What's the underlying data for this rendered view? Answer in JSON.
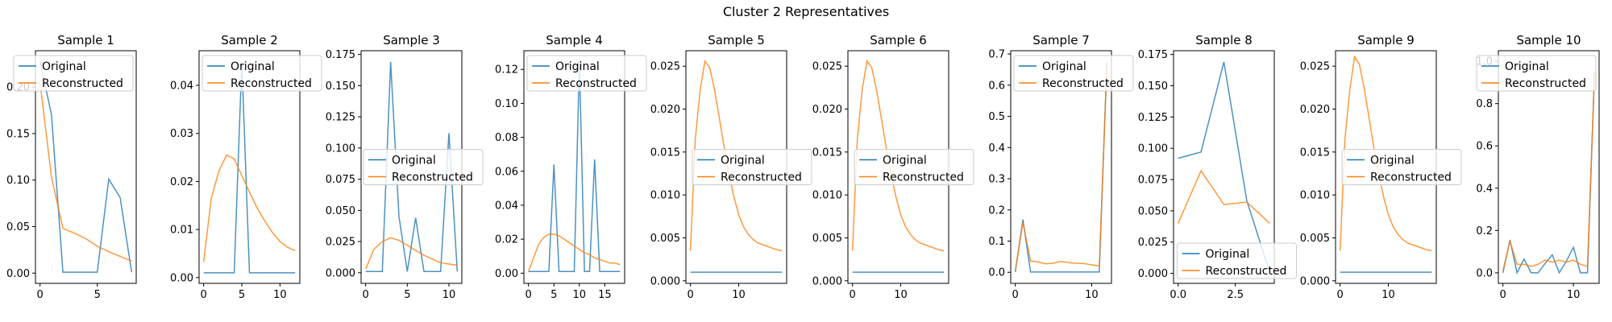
{
  "figure": {
    "suptitle": "Cluster 2 Representatives",
    "colors": {
      "original": "#1f77b4",
      "reconstructed": "#ff7f0e"
    }
  },
  "chart_data": [
    {
      "type": "line",
      "title": "Sample 1",
      "xlim": [
        -0.4,
        8.4
      ],
      "ylim": [
        -0.011,
        0.239
      ],
      "xticks": [
        0,
        5
      ],
      "yticks": [
        0.0,
        0.05,
        0.1,
        0.15,
        0.2
      ],
      "ytick_labels": [
        "0.00",
        "0.05",
        "0.10",
        "0.15",
        "0.20"
      ],
      "legend_position": "upper-right",
      "series": [
        {
          "name": "Original",
          "x": [
            0,
            1,
            2,
            3,
            4,
            5,
            6,
            7,
            8
          ],
          "values": [
            0.228,
            0.17,
            0.001,
            0.001,
            0.001,
            0.001,
            0.101,
            0.081,
            0.001
          ]
        },
        {
          "name": "Reconstructed",
          "x": [
            0,
            1,
            2,
            3,
            4,
            5,
            6,
            7,
            8
          ],
          "values": [
            0.205,
            0.103,
            0.048,
            0.043,
            0.037,
            0.029,
            0.023,
            0.018,
            0.013
          ]
        }
      ]
    },
    {
      "type": "line",
      "title": "Sample 2",
      "xlim": [
        -0.6,
        12.6
      ],
      "ylim": [
        -0.0012,
        0.0472
      ],
      "xticks": [
        0,
        5,
        10
      ],
      "yticks": [
        0.0,
        0.01,
        0.02,
        0.03,
        0.04
      ],
      "ytick_labels": [
        "0.00",
        "0.01",
        "0.02",
        "0.03",
        "0.04"
      ],
      "legend_position": "upper-left",
      "series": [
        {
          "name": "Original",
          "x": [
            0,
            1,
            2,
            3,
            4,
            5,
            6,
            7,
            8,
            9,
            10,
            11,
            12
          ],
          "values": [
            0.001,
            0.001,
            0.001,
            0.001,
            0.001,
            0.045,
            0.001,
            0.001,
            0.001,
            0.001,
            0.001,
            0.001,
            0.001
          ]
        },
        {
          "name": "Reconstructed",
          "x": [
            0,
            1,
            2,
            3,
            4,
            5,
            6,
            7,
            8,
            9,
            10,
            11,
            12
          ],
          "values": [
            0.0033,
            0.0165,
            0.0222,
            0.0255,
            0.0247,
            0.0212,
            0.0178,
            0.0145,
            0.0118,
            0.0094,
            0.0075,
            0.0063,
            0.0056
          ]
        }
      ]
    },
    {
      "type": "line",
      "title": "Sample 3",
      "xlim": [
        -0.55,
        11.55
      ],
      "ylim": [
        -0.0085,
        0.178
      ],
      "xticks": [
        0,
        5,
        10
      ],
      "yticks": [
        0.0,
        0.025,
        0.05,
        0.075,
        0.1,
        0.125,
        0.15,
        0.175
      ],
      "ytick_labels": [
        "0.000",
        "0.025",
        "0.050",
        "0.075",
        "0.100",
        "0.125",
        "0.150",
        "0.175"
      ],
      "legend_position": "center-right",
      "series": [
        {
          "name": "Original",
          "x": [
            0,
            1,
            2,
            3,
            4,
            5,
            6,
            7,
            8,
            9,
            10,
            11
          ],
          "values": [
            0.001,
            0.001,
            0.001,
            0.169,
            0.045,
            0.001,
            0.044,
            0.001,
            0.001,
            0.001,
            0.112,
            0.001
          ]
        },
        {
          "name": "Reconstructed",
          "x": [
            0,
            1,
            2,
            3,
            4,
            5,
            6,
            7,
            8,
            9,
            10,
            11
          ],
          "values": [
            0.003,
            0.019,
            0.025,
            0.028,
            0.026,
            0.022,
            0.018,
            0.014,
            0.011,
            0.008,
            0.007,
            0.006
          ]
        }
      ]
    },
    {
      "type": "line",
      "title": "Sample 4",
      "xlim": [
        -0.9,
        18.9
      ],
      "ylim": [
        -0.006,
        0.131
      ],
      "xticks": [
        0,
        5,
        10,
        15
      ],
      "yticks": [
        0.0,
        0.02,
        0.04,
        0.06,
        0.08,
        0.1,
        0.12
      ],
      "ytick_labels": [
        "0.00",
        "0.02",
        "0.04",
        "0.06",
        "0.08",
        "0.10",
        "0.12"
      ],
      "legend_position": "upper-left",
      "series": [
        {
          "name": "Original",
          "x": [
            0,
            1,
            2,
            3,
            4,
            5,
            6,
            7,
            8,
            9,
            10,
            11,
            12,
            13,
            14,
            15,
            16,
            17,
            18
          ],
          "values": [
            0.001,
            0.001,
            0.001,
            0.001,
            0.001,
            0.064,
            0.001,
            0.001,
            0.001,
            0.001,
            0.125,
            0.001,
            0.001,
            0.067,
            0.001,
            0.001,
            0.001,
            0.001,
            0.001
          ]
        },
        {
          "name": "Reconstructed",
          "x": [
            0,
            1,
            2,
            3,
            4,
            5,
            6,
            7,
            8,
            9,
            10,
            11,
            12,
            13,
            14,
            15,
            16,
            17,
            18
          ],
          "values": [
            0.001,
            0.009,
            0.017,
            0.021,
            0.023,
            0.023,
            0.022,
            0.02,
            0.018,
            0.016,
            0.014,
            0.012,
            0.011,
            0.009,
            0.008,
            0.007,
            0.006,
            0.006,
            0.005
          ]
        }
      ]
    },
    {
      "type": "line",
      "title": "Sample 5",
      "xlim": [
        -0.95,
        19.95
      ],
      "ylim": [
        -0.0003,
        0.0268
      ],
      "xticks": [
        0,
        10
      ],
      "yticks": [
        0.0,
        0.005,
        0.01,
        0.015,
        0.02,
        0.025
      ],
      "ytick_labels": [
        "0.000",
        "0.005",
        "0.010",
        "0.015",
        "0.020",
        "0.025"
      ],
      "legend_position": "center-left",
      "series": [
        {
          "name": "Original",
          "x": [
            0,
            1,
            2,
            3,
            4,
            5,
            6,
            7,
            8,
            9,
            10,
            11,
            12,
            13,
            14,
            15,
            16,
            17,
            18,
            19
          ],
          "values": [
            0.001,
            0.001,
            0.001,
            0.001,
            0.001,
            0.001,
            0.001,
            0.001,
            0.001,
            0.001,
            0.001,
            0.001,
            0.001,
            0.001,
            0.001,
            0.001,
            0.001,
            0.001,
            0.001,
            0.001
          ]
        },
        {
          "name": "Reconstructed",
          "x": [
            0,
            1,
            2,
            3,
            4,
            5,
            6,
            7,
            8,
            9,
            10,
            11,
            12,
            13,
            14,
            15,
            16,
            17,
            18,
            19
          ],
          "values": [
            0.0035,
            0.0165,
            0.0222,
            0.0256,
            0.0248,
            0.0222,
            0.0189,
            0.0155,
            0.0124,
            0.0098,
            0.0077,
            0.0063,
            0.0054,
            0.0048,
            0.0044,
            0.0042,
            0.004,
            0.0038,
            0.0036,
            0.0035
          ]
        }
      ]
    },
    {
      "type": "line",
      "title": "Sample 6",
      "xlim": [
        -0.95,
        19.95
      ],
      "ylim": [
        -0.0003,
        0.0268
      ],
      "xticks": [
        0,
        10
      ],
      "yticks": [
        0.0,
        0.005,
        0.01,
        0.015,
        0.02,
        0.025
      ],
      "ytick_labels": [
        "0.000",
        "0.005",
        "0.010",
        "0.015",
        "0.020",
        "0.025"
      ],
      "legend_position": "center-left",
      "series": [
        {
          "name": "Original",
          "x": [
            0,
            1,
            2,
            3,
            4,
            5,
            6,
            7,
            8,
            9,
            10,
            11,
            12,
            13,
            14,
            15,
            16,
            17,
            18,
            19
          ],
          "values": [
            0.001,
            0.001,
            0.001,
            0.001,
            0.001,
            0.001,
            0.001,
            0.001,
            0.001,
            0.001,
            0.001,
            0.001,
            0.001,
            0.001,
            0.001,
            0.001,
            0.001,
            0.001,
            0.001,
            0.001
          ]
        },
        {
          "name": "Reconstructed",
          "x": [
            0,
            1,
            2,
            3,
            4,
            5,
            6,
            7,
            8,
            9,
            10,
            11,
            12,
            13,
            14,
            15,
            16,
            17,
            18,
            19
          ],
          "values": [
            0.0035,
            0.0165,
            0.0222,
            0.0256,
            0.0248,
            0.0222,
            0.0189,
            0.0155,
            0.0124,
            0.0098,
            0.0077,
            0.0063,
            0.0054,
            0.0048,
            0.0044,
            0.0042,
            0.004,
            0.0038,
            0.0036,
            0.0035
          ]
        }
      ]
    },
    {
      "type": "line",
      "title": "Sample 7",
      "xlim": [
        -0.6,
        12.6
      ],
      "ylim": [
        -0.0355,
        0.7105
      ],
      "xticks": [
        0,
        10
      ],
      "yticks": [
        0.0,
        0.1,
        0.2,
        0.3,
        0.4,
        0.5,
        0.6,
        0.7
      ],
      "ytick_labels": [
        "0.0",
        "0.1",
        "0.2",
        "0.3",
        "0.4",
        "0.5",
        "0.6",
        "0.7"
      ],
      "legend_position": "upper-left",
      "series": [
        {
          "name": "Original",
          "x": [
            0,
            1,
            2,
            3,
            4,
            5,
            6,
            7,
            8,
            9,
            10,
            11,
            12
          ],
          "values": [
            0.001,
            0.169,
            0.001,
            0.001,
            0.001,
            0.001,
            0.001,
            0.001,
            0.001,
            0.001,
            0.001,
            0.001,
            0.675
          ]
        },
        {
          "name": "Reconstructed",
          "x": [
            0,
            1,
            2,
            3,
            4,
            5,
            6,
            7,
            8,
            9,
            10,
            11,
            12
          ],
          "values": [
            0.005,
            0.16,
            0.036,
            0.033,
            0.027,
            0.029,
            0.035,
            0.031,
            0.029,
            0.028,
            0.024,
            0.02,
            0.66
          ]
        }
      ]
    },
    {
      "type": "line",
      "title": "Sample 8",
      "xlim": [
        -0.2,
        4.2
      ],
      "ylim": [
        -0.008,
        0.178
      ],
      "xticks": [
        0,
        2.5
      ],
      "xtick_labels": [
        "0.0",
        "2.5"
      ],
      "yticks": [
        0.0,
        0.025,
        0.05,
        0.075,
        0.1,
        0.125,
        0.15,
        0.175
      ],
      "ytick_labels": [
        "0.000",
        "0.025",
        "0.050",
        "0.075",
        "0.100",
        "0.125",
        "0.150",
        "0.175"
      ],
      "legend_position": "lower-center",
      "series": [
        {
          "name": "Original",
          "x": [
            0,
            1,
            2,
            3,
            4
          ],
          "values": [
            0.092,
            0.097,
            0.169,
            0.058,
            0.001
          ]
        },
        {
          "name": "Reconstructed",
          "x": [
            0,
            1,
            2,
            3,
            4
          ],
          "values": [
            0.04,
            0.082,
            0.055,
            0.057,
            0.04
          ]
        }
      ]
    },
    {
      "type": "line",
      "title": "Sample 9",
      "xlim": [
        -0.95,
        19.95
      ],
      "ylim": [
        -0.0003,
        0.0268
      ],
      "xticks": [
        0,
        10
      ],
      "yticks": [
        0.0,
        0.005,
        0.01,
        0.015,
        0.02,
        0.025
      ],
      "ytick_labels": [
        "0.000",
        "0.005",
        "0.010",
        "0.015",
        "0.020",
        "0.025"
      ],
      "legend_position": "center-left",
      "series": [
        {
          "name": "Original",
          "x": [
            0,
            1,
            2,
            3,
            4,
            5,
            6,
            7,
            8,
            9,
            10,
            11,
            12,
            13,
            14,
            15,
            16,
            17,
            18,
            19
          ],
          "values": [
            0.001,
            0.001,
            0.001,
            0.001,
            0.001,
            0.001,
            0.001,
            0.001,
            0.001,
            0.001,
            0.001,
            0.001,
            0.001,
            0.001,
            0.001,
            0.001,
            0.001,
            0.001,
            0.001,
            0.001
          ]
        },
        {
          "name": "Reconstructed",
          "x": [
            0,
            1,
            2,
            3,
            4,
            5,
            6,
            7,
            8,
            9,
            10,
            11,
            12,
            13,
            14,
            15,
            16,
            17,
            18,
            19
          ],
          "values": [
            0.0035,
            0.0165,
            0.0222,
            0.0261,
            0.0252,
            0.0224,
            0.019,
            0.0155,
            0.0124,
            0.0098,
            0.0077,
            0.0063,
            0.0054,
            0.0048,
            0.0044,
            0.0042,
            0.004,
            0.0038,
            0.0036,
            0.0035
          ]
        }
      ]
    },
    {
      "type": "line",
      "title": "Sample 10",
      "xlim": [
        -0.65,
        13.65
      ],
      "ylim": [
        -0.05,
        1.05
      ],
      "xticks": [
        0,
        10
      ],
      "yticks": [
        0.0,
        0.2,
        0.4,
        0.6,
        0.8,
        1.0
      ],
      "ytick_labels": [
        "0.0",
        "0.2",
        "0.4",
        "0.6",
        "0.8",
        "1.0"
      ],
      "legend_position": "upper-right",
      "series": [
        {
          "name": "Original",
          "x": [
            0,
            1,
            2,
            3,
            4,
            5,
            6,
            7,
            8,
            9,
            10,
            11,
            12,
            13
          ],
          "values": [
            0.0,
            0.155,
            0.0,
            0.065,
            0.0,
            0.0,
            0.045,
            0.085,
            0.0,
            0.055,
            0.12,
            0.0,
            0.0,
            0.95
          ]
        },
        {
          "name": "Reconstructed",
          "x": [
            0,
            1,
            2,
            3,
            4,
            5,
            6,
            7,
            8,
            9,
            10,
            11,
            12,
            13
          ],
          "values": [
            0.01,
            0.15,
            0.04,
            0.04,
            0.03,
            0.04,
            0.06,
            0.05,
            0.06,
            0.05,
            0.06,
            0.04,
            0.03,
            0.95
          ]
        }
      ]
    }
  ]
}
